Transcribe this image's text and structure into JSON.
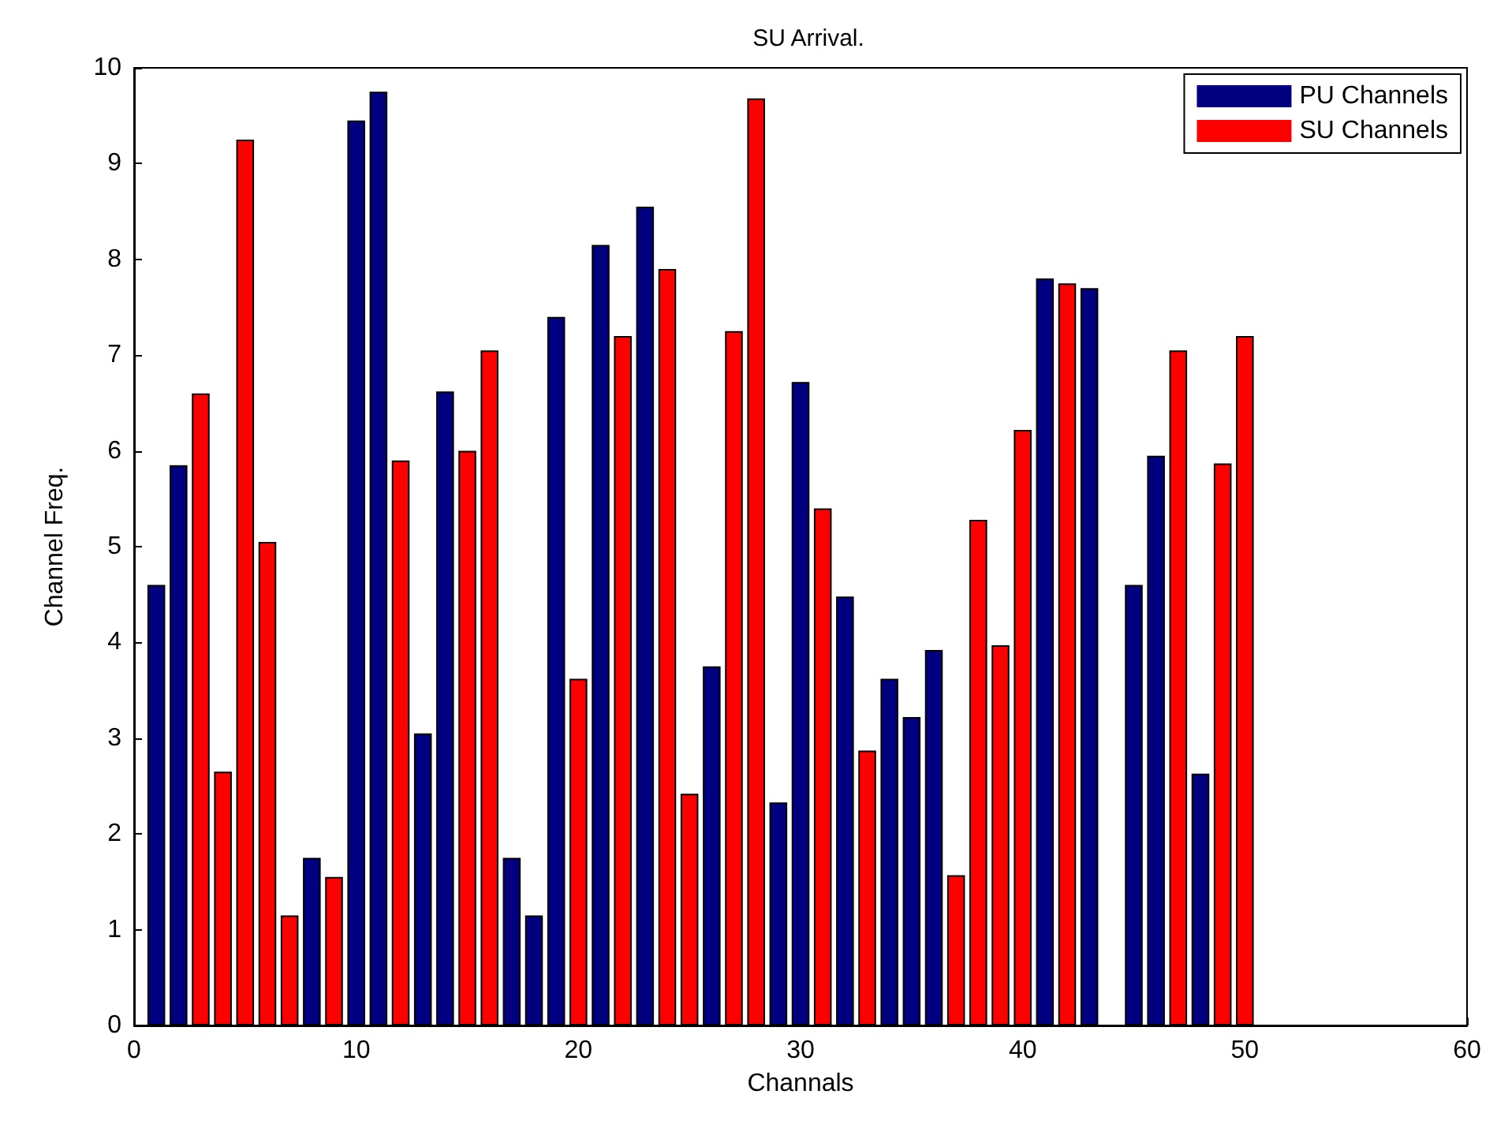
{
  "chart_data": {
    "type": "bar",
    "title": "SU Arrival.",
    "xlabel": "Channals",
    "ylabel": "Channel Freq.",
    "xlim": [
      0,
      60
    ],
    "xticks": [
      0,
      10,
      20,
      30,
      40,
      50,
      60
    ],
    "ylim": [
      0,
      10
    ],
    "yticks": [
      0,
      1,
      2,
      3,
      4,
      5,
      6,
      7,
      8,
      9,
      10
    ],
    "grid": false,
    "legend": "top right",
    "series": [
      {
        "name": "PU Channels",
        "color": "#000080",
        "x": [
          1,
          2,
          8,
          10,
          11,
          13,
          14,
          17,
          18,
          19,
          21,
          23,
          26,
          29,
          30,
          32,
          34,
          35,
          36,
          41,
          43,
          45,
          46,
          48
        ],
        "values": [
          4.6,
          5.85,
          1.75,
          9.45,
          9.75,
          3.05,
          6.62,
          1.75,
          1.15,
          7.4,
          8.15,
          8.55,
          3.75,
          2.33,
          6.72,
          4.48,
          3.62,
          3.22,
          3.92,
          7.8,
          7.7,
          4.6,
          5.95,
          2.63
        ]
      },
      {
        "name": "SU Channels",
        "color": "#ff0000",
        "x": [
          3,
          4,
          5,
          6,
          7,
          9,
          12,
          15,
          16,
          20,
          22,
          24,
          25,
          27,
          28,
          31,
          33,
          37,
          38,
          39,
          40,
          42,
          44,
          47,
          49,
          50
        ],
        "values": [
          6.6,
          2.65,
          9.25,
          5.05,
          1.15,
          1.55,
          5.9,
          6.0,
          7.05,
          3.62,
          7.2,
          7.9,
          2.42,
          7.25,
          9.68,
          5.4,
          2.87,
          1.57,
          5.28,
          3.97,
          6.22,
          7.75,
          null,
          7.05,
          5.87,
          7.2
        ]
      }
    ]
  }
}
